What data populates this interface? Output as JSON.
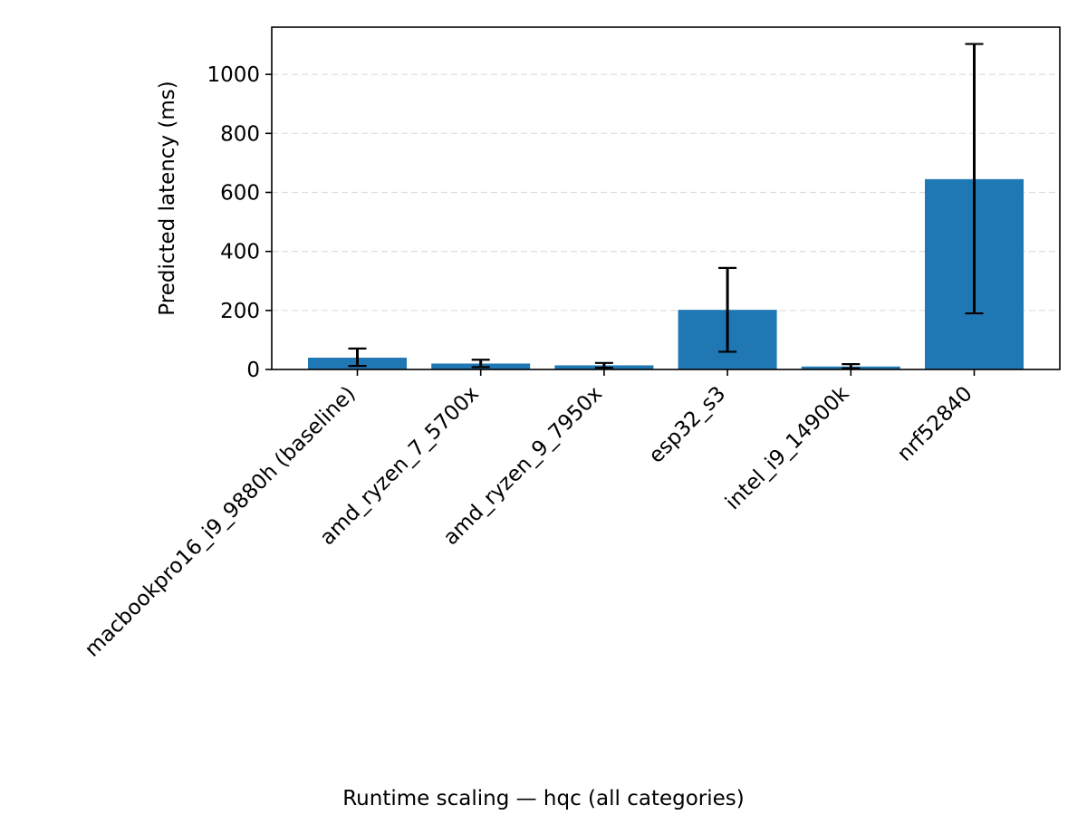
{
  "chart_data": {
    "type": "bar",
    "title": "Runtime scaling — hqc (all categories)",
    "xlabel": "",
    "ylabel": "Predicted latency (ms)",
    "categories": [
      "macbookpro16_i9_9880h (baseline)",
      "amd_ryzen_7_5700x",
      "amd_ryzen_9_7950x",
      "esp32_s3",
      "intel_i9_14900k",
      "nrf52840"
    ],
    "values": [
      40,
      20,
      14,
      202,
      10,
      645
    ],
    "error_low": [
      12,
      8,
      6,
      60,
      4,
      190
    ],
    "error_high": [
      71,
      33,
      22,
      344,
      18,
      1103
    ],
    "ylim": [
      0,
      1160
    ],
    "yticks": [
      0,
      200,
      400,
      600,
      800,
      1000
    ],
    "grid": true,
    "bar_color": "#1f77b4",
    "error_color": "#000000",
    "grid_color": "#dddddd"
  }
}
